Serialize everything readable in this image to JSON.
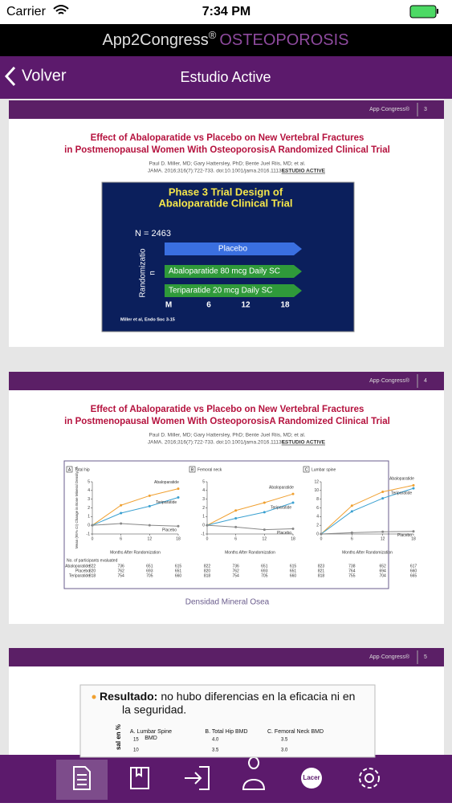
{
  "status_bar": {
    "carrier": "Carrier",
    "time": "7:34 PM"
  },
  "app_header": {
    "brand": "App2Congress",
    "registered": "®",
    "product": "OSTEOPOROSIS"
  },
  "nav_bar": {
    "back": "Volver",
    "title": "Estudio Active"
  },
  "slides": [
    {
      "brand": "App·Congress®",
      "page": "3",
      "title": [
        "Effect of Abaloparatide vs Placebo on New Vertebral Fractures",
        "in Postmenopausal Women With OsteoporosisA Randomized Clinical Trial"
      ],
      "authors": "Paul D. Miller, MD; Gary Hattersley, PhD; Bente Juel Riis, MD; et al.",
      "citation": "JAMA. 2016;316(7):722-733. doi:10.1001/jama.2016.11136.",
      "citation_tag": "ESTUDIO ACTIVE",
      "figure": {
        "heading": [
          "Phase 3 Trial Design of",
          "Abaloparatide Clinical Trial"
        ],
        "n": "N = 2463",
        "randomization": [
          "Randomizatio",
          "n"
        ],
        "arms": [
          "Placebo",
          "Abaloparatide 80 mcg Daily SC",
          "Teriparatide 20 mcg Daily SC"
        ],
        "timepoints": [
          "M",
          "6",
          "12",
          "18"
        ],
        "source": "Miller et al, Endo Soc 3-15"
      }
    },
    {
      "brand": "App·Congress®",
      "page": "4",
      "title": [
        "Effect of Abaloparatide vs Placebo on New Vertebral Fractures",
        "in Postmenopausal Women With OsteoporosisA Randomized Clinical Trial"
      ],
      "authors": "Paul D. Miller, MD; Gary Hattersley, PhD; Bente Juel Riis, MD; et al.",
      "citation": "JAMA. 2016;316(7):722-733. doi:10.1001/jama.2016.11136.",
      "citation_tag": "ESTUDIO ACTIVE",
      "figure": {
        "type": "line",
        "ylabel": "Mean (95% CI) Change in Bone Mineral Density, %",
        "xlabel": "Months After Randomization",
        "x": [
          0,
          6,
          12,
          18
        ],
        "xlim": [
          0,
          18
        ],
        "xticks": [
          0,
          6,
          12,
          18
        ],
        "panels": [
          {
            "label": "A",
            "title": "Total hip",
            "ylim": [
              -1,
              5
            ],
            "yticks": [
              -1,
              0,
              1,
              2,
              3,
              4,
              5
            ],
            "series": [
              {
                "name": "Abaloparatide",
                "color": "#f0a030",
                "values": [
                  0,
                  2.3,
                  3.4,
                  4.2
                ]
              },
              {
                "name": "Teriparatide",
                "color": "#3aa0d0",
                "values": [
                  0,
                  1.4,
                  2.2,
                  3.2
                ]
              },
              {
                "name": "Placebo",
                "color": "#888888",
                "values": [
                  0,
                  0.2,
                  0,
                  -0.1
                ]
              }
            ]
          },
          {
            "label": "B",
            "title": "Femoral neck",
            "ylim": [
              -1,
              5
            ],
            "yticks": [
              -1,
              0,
              1,
              2,
              3,
              4,
              5
            ],
            "series": [
              {
                "name": "Abaloparatide",
                "color": "#f0a030",
                "values": [
                  0,
                  1.7,
                  2.6,
                  3.6
                ]
              },
              {
                "name": "Teriparatide",
                "color": "#3aa0d0",
                "values": [
                  0,
                  0.8,
                  1.5,
                  2.6
                ]
              },
              {
                "name": "Placebo",
                "color": "#888888",
                "values": [
                  0,
                  -0.2,
                  -0.5,
                  -0.4
                ]
              }
            ]
          },
          {
            "label": "C",
            "title": "Lumbar spine",
            "ylim": [
              0,
              12
            ],
            "yticks": [
              0,
              2,
              4,
              6,
              8,
              10,
              12
            ],
            "series": [
              {
                "name": "Abaloparatide",
                "color": "#f0a030",
                "values": [
                  0,
                  6.5,
                  9.7,
                  11.2
                ]
              },
              {
                "name": "Teriparatide",
                "color": "#3aa0d0",
                "values": [
                  0,
                  5.2,
                  8.2,
                  10.5
                ]
              },
              {
                "name": "Placebo",
                "color": "#888888",
                "values": [
                  0,
                  0.3,
                  0.5,
                  0.6
                ]
              }
            ]
          }
        ],
        "table": {
          "title": "No. of participants evaluated",
          "rows": [
            {
              "name": "Abaloparatide",
              "values": [
                [
                  822,
                  736,
                  651,
                  615
                ],
                [
                  822,
                  736,
                  651,
                  615
                ],
                [
                  823,
                  738,
                  652,
                  617
                ]
              ]
            },
            {
              "name": "Placebo",
              "values": [
                [
                  820,
                  762,
                  693,
                  651
                ],
                [
                  820,
                  762,
                  693,
                  651
                ],
                [
                  821,
                  764,
                  694,
                  660
                ]
              ]
            },
            {
              "name": "Teriparatide",
              "values": [
                [
                  818,
                  754,
                  705,
                  660
                ],
                [
                  818,
                  754,
                  705,
                  660
                ],
                [
                  818,
                  755,
                  704,
                  665
                ]
              ]
            }
          ]
        }
      },
      "caption": "Densidad Mineral Osea"
    },
    {
      "brand": "App·Congress®",
      "page": "5",
      "bullet_label": "Resultado:",
      "bullet_text": [
        "no hubo diferencias en la eficacia ni en",
        "la seguridad."
      ],
      "ylabel": "sal en %",
      "panels": [
        {
          "title": [
            "A. Lumbar Spine",
            "BMD"
          ],
          "ticks": [
            "15",
            "10"
          ]
        },
        {
          "title": [
            "B. Total Hip BMD"
          ],
          "ticks": [
            "4.0",
            "3.5"
          ]
        },
        {
          "title": [
            "C. Femoral Neck BMD"
          ],
          "ticks": [
            "3.5",
            "3.0"
          ]
        }
      ]
    }
  ],
  "tab_bar": {
    "lacer": "Lacer"
  }
}
